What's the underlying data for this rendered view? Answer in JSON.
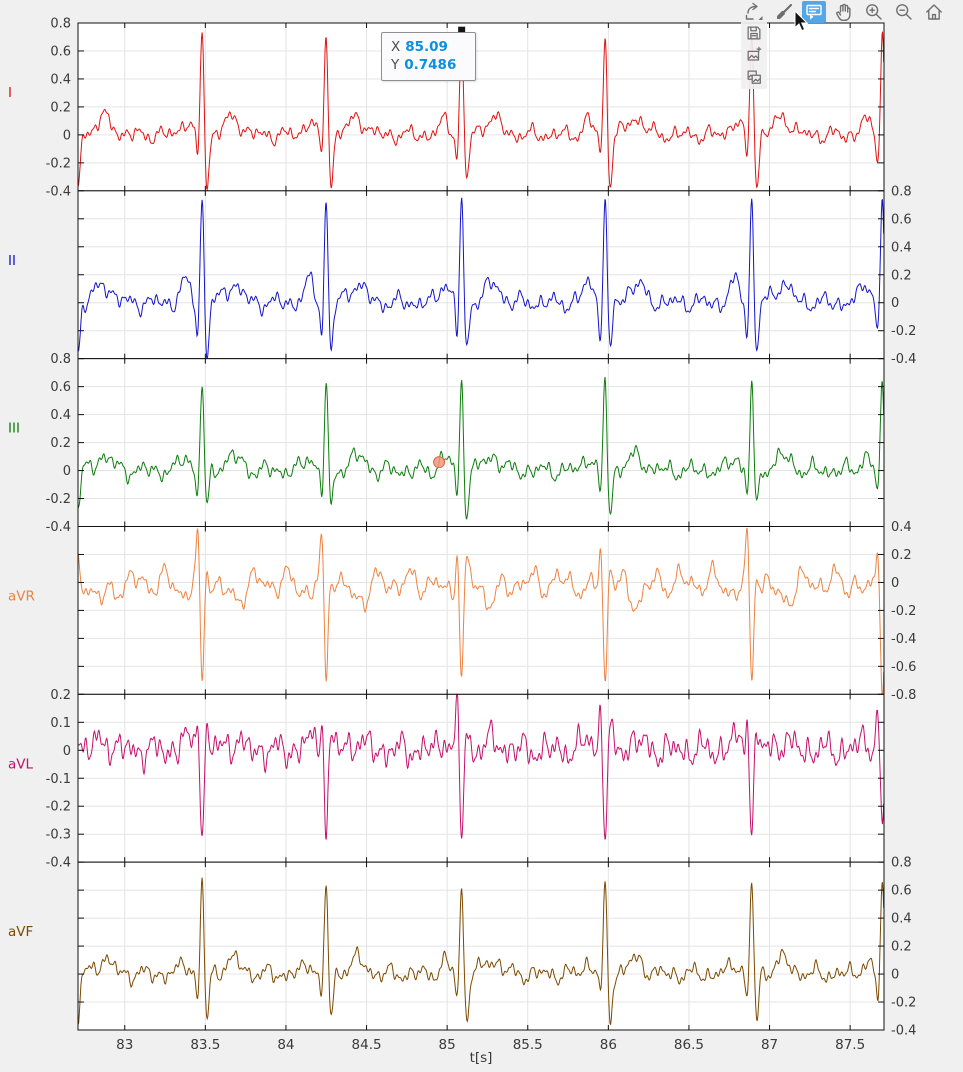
{
  "figure": {
    "background": "#f0f0f0",
    "panel_background": "#ffffff",
    "grid_color": "#e4e4e4",
    "axis_color": "#111111"
  },
  "toolbar": {
    "buttons": [
      "export",
      "brush",
      "datatips",
      "pan",
      "zoom-in",
      "zoom-out",
      "restore-view"
    ],
    "active_button": "datatips",
    "export_menu": [
      "save-as",
      "copy-as-image",
      "copy-as-vector"
    ],
    "active_color": "#53a7e8",
    "icon_color": "#6f6f6f"
  },
  "datatip": {
    "x_label": "X",
    "x_value": "85.09",
    "y_label": "Y",
    "y_value": "0.7486",
    "value_color": "#0a90e0"
  },
  "chart_data": {
    "type": "line",
    "title": "",
    "xlabel": "t[s]",
    "x_range": [
      82.71,
      87.71
    ],
    "x_ticks": [
      83,
      83.5,
      84,
      84.5,
      85,
      85.5,
      86,
      86.5,
      87,
      87.5
    ],
    "x_tick_labels": [
      "83",
      "83.5",
      "84",
      "84.5",
      "85",
      "85.5",
      "86",
      "86.5",
      "87",
      "87.5"
    ],
    "grid": true,
    "sample_step_s": 0.0035,
    "beat_times": [
      82.68,
      83.48,
      84.25,
      85.09,
      85.98,
      86.89,
      87.7
    ],
    "beat_offsets": {
      "p": [
        -0.105,
        0.03
      ],
      "q": [
        -0.028,
        0.0095
      ],
      "r": [
        0,
        0.011
      ],
      "s": [
        0.03,
        0.013
      ],
      "t": [
        0.19,
        0.05
      ]
    },
    "panels": [
      {
        "lead": "I",
        "color": "#e01212",
        "ylim": [
          -0.4,
          0.8
        ],
        "ytick_side": "left",
        "yticks": [
          "0.8",
          "0.6",
          "0.4",
          "0.2",
          "0",
          "-0.2",
          "-0.4"
        ],
        "beat": {
          "p": 0.1,
          "q": -0.18,
          "r": 0.75,
          "s": -0.36,
          "t": 0.12
        },
        "noise": 0.045,
        "hf": 1,
        "datatip_point": {
          "x": 85.09,
          "y": 0.7486
        }
      },
      {
        "lead": "II",
        "color": "#1414cc",
        "ylim": [
          -0.4,
          0.8
        ],
        "ytick_side": "right",
        "yticks": [
          "0.8",
          "0.6",
          "0.4",
          "0.2",
          "0",
          "-0.2",
          "-0.4"
        ],
        "beat": {
          "p": 0.15,
          "q": -0.24,
          "r": 0.76,
          "s": -0.37,
          "t": 0.13
        },
        "noise": 0.05,
        "hf": 1
      },
      {
        "lead": "III",
        "color": "#0c7d0c",
        "ylim": [
          -0.4,
          0.8
        ],
        "ytick_side": "left",
        "yticks": [
          "0.8",
          "0.6",
          "0.4",
          "0.2",
          "0",
          "-0.2",
          "-0.4"
        ],
        "beat": {
          "p": 0.1,
          "q": -0.2,
          "r": 0.65,
          "s": -0.3,
          "t": 0.1
        },
        "noise": 0.05,
        "hf": 1,
        "hover_marker": {
          "x": 84.95,
          "y": 0.06,
          "color": "#f29579",
          "edge": "#d96a4f"
        }
      },
      {
        "lead": "aVR",
        "color": "#ee8340",
        "ylim": [
          -0.8,
          0.4
        ],
        "ytick_side": "right",
        "yticks": [
          "0.4",
          "0.2",
          "0",
          "-0.2",
          "-0.4",
          "-0.6",
          "-0.8"
        ],
        "beat": {
          "p": -0.08,
          "q": 0.3,
          "r": -0.73,
          "s": 0.13,
          "t": -0.12
        },
        "noise": 0.1,
        "hf": 0.5
      },
      {
        "lead": "aVL",
        "color": "#c5106c",
        "ylim": [
          -0.4,
          0.2
        ],
        "ytick_side": "left",
        "yticks": [
          "0.2",
          "0.1",
          "0",
          "-0.1",
          "-0.2",
          "-0.3",
          "-0.4"
        ],
        "beat": {
          "p": 0.04,
          "q": 0.15,
          "r": -0.31,
          "s": 0.06,
          "t": 0.03
        },
        "noise": 0.038,
        "hf": 1.3
      },
      {
        "lead": "aVF",
        "color": "#7c4a00",
        "ylim": [
          -0.4,
          0.8
        ],
        "ytick_side": "right",
        "yticks": [
          "0.8",
          "0.6",
          "0.4",
          "0.2",
          "0",
          "-0.2",
          "-0.4"
        ],
        "beat": {
          "p": 0.08,
          "q": -0.2,
          "r": 0.66,
          "s": -0.33,
          "t": 0.1
        },
        "noise": 0.05,
        "hf": 1
      }
    ]
  }
}
